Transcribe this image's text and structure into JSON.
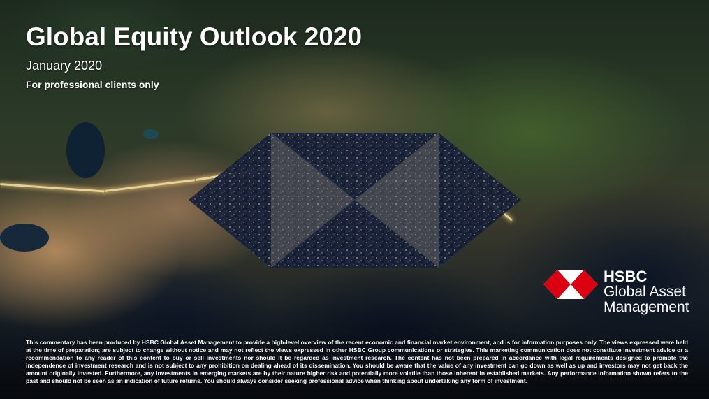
{
  "slide": {
    "title": "Global Equity Outlook 2020",
    "date": "January 2020",
    "audience": "For professional clients only"
  },
  "logo": {
    "icon": "hsbc-hexagon-icon",
    "brand": "HSBC",
    "line1": "Global Asset",
    "line2": "Management",
    "colors": {
      "red": "#db0011",
      "white": "#ffffff"
    }
  },
  "disclaimer": "This commentary has been produced by HSBC Global Asset Management to provide a high-level overview of the recent economic and financial market environment, and is for information purposes only. The views expressed were held at the time of preparation; are subject to change without notice and may not reflect the views expressed in other HSBC Group communications or strategies. This marketing communication does not constitute investment advice or a recommendation to any reader of this content to buy or sell investments nor should it be regarded as investment research. The content has not been prepared in accordance with legal requirements designed to promote the independence of investment research and is not subject to any prohibition on dealing ahead of its dissemination. You should be aware that the value of any investment can go down as well as up and investors may not get back the amount originally invested. Furthermore, any investments in emerging markets are by their nature higher risk and potentially more volatile than those inherent in established markets. Any performance information shown refers to the past and should not be seen as an indication of future returns. You should always consider seeking professional advice when thinking about undertaking any form of investment."
}
